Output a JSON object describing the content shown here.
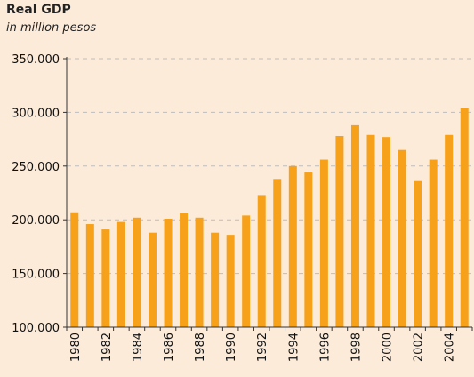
{
  "chart_data": {
    "type": "bar",
    "title": "Real GDP",
    "subtitle": "in million pesos",
    "xlabel": "",
    "ylabel": "",
    "categories": [
      "1980",
      "1981",
      "1982",
      "1983",
      "1984",
      "1985",
      "1986",
      "1987",
      "1988",
      "1989",
      "1990",
      "1991",
      "1992",
      "1993",
      "1994",
      "1995",
      "1996",
      "1997",
      "1998",
      "1999",
      "2000",
      "2001",
      "2002",
      "2003",
      "2004",
      "2005"
    ],
    "x_tick_labels": [
      "1980",
      "1982",
      "1984",
      "1986",
      "1988",
      "1990",
      "1992",
      "1994",
      "1996",
      "1998",
      "2000",
      "2002",
      "2004"
    ],
    "values": [
      207000,
      196000,
      191000,
      198000,
      202000,
      188000,
      201000,
      206000,
      202000,
      188000,
      186000,
      204000,
      223000,
      238000,
      250000,
      244000,
      256000,
      278000,
      288000,
      279000,
      277000,
      265000,
      236000,
      256000,
      279000,
      304000
    ],
    "ylim": [
      100000,
      350000
    ],
    "y_ticks": [
      100000,
      150000,
      200000,
      250000,
      300000,
      350000
    ],
    "y_tick_labels": [
      "100.000",
      "150.000",
      "200.000",
      "250.000",
      "300.000",
      "350.000"
    ],
    "grid": true,
    "bar_color": "#f7a11a",
    "grid_color": "#bdbdbd"
  }
}
